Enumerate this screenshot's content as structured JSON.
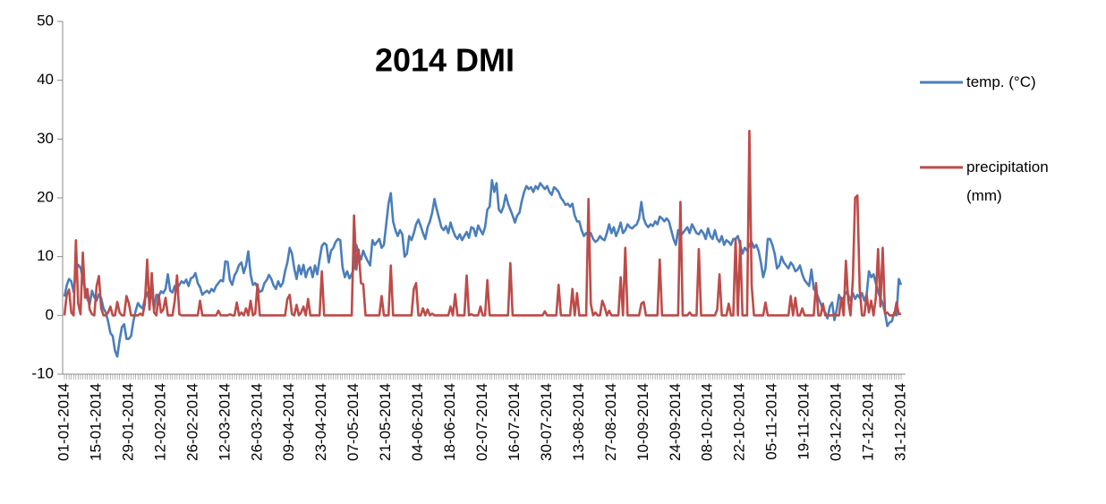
{
  "chart_data": {
    "type": "line",
    "title": "2014 DMI",
    "categories": [
      "01-01-2014",
      null,
      null,
      null,
      null,
      null,
      null,
      null,
      null,
      null,
      null,
      null,
      null,
      null,
      "15-01-2014",
      null,
      null,
      null,
      null,
      null,
      null,
      null,
      null,
      null,
      null,
      null,
      null,
      null,
      "29-01-2014",
      null,
      null,
      null,
      null,
      null,
      null,
      null,
      null,
      null,
      null,
      null,
      null,
      null,
      "12-02-2014",
      null,
      null,
      null,
      null,
      null,
      null,
      null,
      null,
      null,
      null,
      null,
      null,
      null,
      "26-02-2014",
      null,
      null,
      null,
      null,
      null,
      null,
      null,
      null,
      null,
      null,
      null,
      null,
      null,
      "12-03-2014",
      null,
      null,
      null,
      null,
      null,
      null,
      null,
      null,
      null,
      null,
      null,
      null,
      null,
      "26-03-2014",
      null,
      null,
      null,
      null,
      null,
      null,
      null,
      null,
      null,
      null,
      null,
      null,
      null,
      "09-04-2014",
      null,
      null,
      null,
      null,
      null,
      null,
      null,
      null,
      null,
      null,
      null,
      null,
      null,
      "23-04-2014",
      null,
      null,
      null,
      null,
      null,
      null,
      null,
      null,
      null,
      null,
      null,
      null,
      null,
      "07-05-2014",
      null,
      null,
      null,
      null,
      null,
      null,
      null,
      null,
      null,
      null,
      null,
      null,
      null,
      "21-05-2014",
      null,
      null,
      null,
      null,
      null,
      null,
      null,
      null,
      null,
      null,
      null,
      null,
      null,
      "04-06-2014",
      null,
      null,
      null,
      null,
      null,
      null,
      null,
      null,
      null,
      null,
      null,
      null,
      null,
      "18-06-2014",
      null,
      null,
      null,
      null,
      null,
      null,
      null,
      null,
      null,
      null,
      null,
      null,
      null,
      "02-07-2014",
      null,
      null,
      null,
      null,
      null,
      null,
      null,
      null,
      null,
      null,
      null,
      null,
      null,
      "16-07-2014",
      null,
      null,
      null,
      null,
      null,
      null,
      null,
      null,
      null,
      null,
      null,
      null,
      null,
      "30-07-2014",
      null,
      null,
      null,
      null,
      null,
      null,
      null,
      null,
      null,
      null,
      null,
      null,
      null,
      "13-08-2014",
      null,
      null,
      null,
      null,
      null,
      null,
      null,
      null,
      null,
      null,
      null,
      null,
      null,
      "27-08-2014",
      null,
      null,
      null,
      null,
      null,
      null,
      null,
      null,
      null,
      null,
      null,
      null,
      null,
      "10-09-2014",
      null,
      null,
      null,
      null,
      null,
      null,
      null,
      null,
      null,
      null,
      null,
      null,
      null,
      "24-09-2014",
      null,
      null,
      null,
      null,
      null,
      null,
      null,
      null,
      null,
      null,
      null,
      null,
      null,
      "08-10-2014",
      null,
      null,
      null,
      null,
      null,
      null,
      null,
      null,
      null,
      null,
      null,
      null,
      null,
      "22-10-2014",
      null,
      null,
      null,
      null,
      null,
      null,
      null,
      null,
      null,
      null,
      null,
      null,
      null,
      "05-11-2014",
      null,
      null,
      null,
      null,
      null,
      null,
      null,
      null,
      null,
      null,
      null,
      null,
      null,
      "19-11-2014",
      null,
      null,
      null,
      null,
      null,
      null,
      null,
      null,
      null,
      null,
      null,
      null,
      null,
      "03-12-2014",
      null,
      null,
      null,
      null,
      null,
      null,
      null,
      null,
      null,
      null,
      null,
      null,
      null,
      "17-12-2014",
      null,
      null,
      null,
      null,
      null,
      null,
      null,
      null,
      null,
      null,
      null,
      null,
      null,
      "31-12-2014"
    ],
    "series": [
      {
        "name": "temp. (°C)",
        "color": "#4a7ebb",
        "values": [
          3.2,
          5.1,
          6.2,
          5.8,
          4.0,
          7.5,
          8.6,
          8.1,
          6.3,
          4.5,
          2.8,
          1.9,
          4.2,
          3.1,
          2.5,
          3.6,
          2.9,
          1.2,
          0.5,
          -1.0,
          -3.0,
          -3.5,
          -6.0,
          -7.0,
          -4.2,
          -2.0,
          -1.5,
          -4.0,
          -4.0,
          -3.5,
          -1.0,
          0.8,
          2.1,
          1.5,
          1.2,
          2.8,
          3.9,
          2.5,
          3.8,
          1.0,
          3.5,
          3.2,
          4.1,
          3.8,
          4.5,
          7.0,
          4.2,
          3.9,
          5.0,
          4.6,
          5.2,
          5.8,
          5.5,
          6.1,
          5.0,
          6.3,
          6.5,
          7.2,
          5.5,
          4.8,
          3.5,
          3.9,
          4.2,
          3.8,
          4.5,
          4.1,
          5.0,
          5.5,
          6.0,
          5.8,
          9.2,
          9.1,
          6.0,
          5.2,
          6.8,
          7.5,
          8.6,
          9.0,
          7.2,
          8.5,
          10.9,
          7.0,
          5.2,
          5.5,
          4.8,
          4.0,
          4.2,
          5.5,
          6.0,
          6.9,
          6.2,
          5.1,
          4.5,
          5.8,
          4.9,
          5.5,
          7.5,
          9.0,
          11.5,
          10.5,
          8.0,
          6.2,
          8.5,
          7.0,
          8.6,
          6.5,
          7.8,
          8.2,
          6.5,
          8.5,
          7.0,
          9.5,
          11.8,
          12.3,
          12.0,
          9.0,
          11.0,
          11.5,
          12.5,
          13.0,
          12.8,
          8.2,
          6.5,
          7.5,
          6.3,
          7.0,
          8.0,
          12.0,
          10.5,
          9.5,
          11.0,
          10.0,
          9.2,
          8.5,
          12.8,
          12.0,
          12.5,
          13.0,
          11.5,
          12.0,
          15.5,
          19.0,
          20.8,
          16.0,
          14.5,
          13.5,
          14.5,
          13.8,
          10.0,
          10.5,
          13.5,
          12.8,
          14.0,
          15.5,
          16.3,
          15.2,
          14.0,
          13.0,
          15.0,
          16.0,
          17.5,
          19.8,
          18.0,
          16.5,
          15.0,
          14.5,
          15.2,
          14.0,
          15.8,
          14.5,
          13.5,
          13.0,
          13.8,
          12.8,
          13.5,
          14.2,
          13.2,
          15.0,
          14.8,
          13.5,
          15.3,
          14.5,
          13.8,
          15.0,
          18.0,
          18.5,
          23.0,
          21.0,
          22.5,
          18.0,
          17.5,
          18.5,
          20.5,
          19.0,
          18.0,
          17.0,
          15.8,
          17.0,
          17.5,
          19.5,
          21.0,
          22.0,
          21.5,
          21.8,
          21.0,
          22.0,
          21.5,
          22.5,
          22.0,
          21.5,
          22.0,
          21.0,
          20.5,
          21.8,
          21.5,
          21.0,
          20.0,
          19.5,
          18.8,
          19.0,
          18.5,
          19.0,
          17.0,
          16.0,
          16.0,
          14.5,
          13.5,
          14.0,
          13.5,
          14.0,
          13.0,
          12.5,
          12.8,
          13.5,
          13.0,
          12.8,
          14.0,
          15.5,
          14.0,
          15.0,
          13.5,
          14.5,
          15.8,
          14.0,
          14.5,
          15.5,
          15.0,
          14.8,
          15.2,
          15.5,
          16.5,
          19.3,
          16.5,
          15.5,
          15.0,
          15.5,
          15.2,
          16.0,
          15.5,
          16.8,
          16.5,
          16.0,
          16.5,
          16.0,
          14.5,
          13.0,
          12.0,
          14.5,
          13.5,
          14.0,
          14.5,
          15.0,
          14.0,
          15.5,
          14.8,
          14.0,
          13.8,
          14.5,
          14.0,
          13.0,
          14.8,
          13.5,
          13.0,
          14.5,
          13.0,
          12.5,
          13.5,
          12.0,
          12.8,
          12.5,
          12.0,
          13.0,
          13.0,
          13.5,
          12.0,
          10.5,
          11.5,
          11.0,
          12.0,
          12.5,
          11.5,
          12.0,
          11.0,
          9.0,
          6.5,
          8.0,
          13.0,
          13.0,
          12.0,
          10.5,
          8.0,
          8.5,
          10.0,
          9.0,
          8.5,
          8.0,
          9.0,
          8.5,
          7.5,
          7.8,
          8.5,
          7.0,
          6.0,
          5.5,
          5.0,
          7.8,
          4.5,
          4.0,
          3.0,
          2.0,
          1.0,
          0.5,
          -0.5,
          1.5,
          2.2,
          -0.8,
          1.0,
          3.5,
          2.5,
          3.0,
          4.0,
          3.5,
          2.5,
          3.8,
          2.8,
          3.5,
          3.0,
          3.8,
          2.5,
          3.5,
          7.5,
          6.5,
          7.0,
          5.5,
          4.0,
          3.0,
          2.0,
          0.5,
          -1.8,
          -1.2,
          -1.0,
          0.5,
          0.0,
          6.2,
          5.2
        ]
      },
      {
        "name": "precipitation (mm)",
        "color": "#be4b48",
        "values": [
          0,
          3.5,
          4.4,
          0.5,
          0,
          12.8,
          2.0,
          0.2,
          10.7,
          3.0,
          4.5,
          1.0,
          0.2,
          0,
          5.0,
          6.7,
          1.2,
          0,
          0,
          0.5,
          1.5,
          0,
          0,
          2.3,
          0.5,
          0,
          0,
          3.3,
          2.1,
          0,
          0,
          0,
          0,
          0.3,
          0,
          2.0,
          9.5,
          1.0,
          7.2,
          0.5,
          0,
          3.5,
          0.5,
          1.0,
          3.0,
          0,
          0,
          0,
          2.5,
          6.8,
          0.2,
          0,
          0,
          0,
          0,
          0,
          0,
          0,
          0,
          2.5,
          0,
          0,
          0,
          0,
          0,
          0,
          0,
          0.8,
          0,
          0,
          0,
          0,
          0.2,
          0,
          0,
          2.2,
          0,
          0.5,
          0,
          1.2,
          0,
          2.5,
          0,
          0.3,
          5.3,
          0,
          0,
          0,
          0,
          0,
          0,
          0,
          0,
          0,
          0,
          0,
          0,
          2.8,
          3.5,
          0.2,
          0,
          1.8,
          0,
          0.5,
          1.5,
          0,
          2.8,
          0,
          0,
          0,
          0,
          0,
          7.5,
          0,
          0,
          0,
          0,
          0,
          0,
          0,
          0,
          0,
          0,
          0,
          0,
          0,
          17.0,
          7.8,
          11.2,
          5.5,
          5.3,
          0,
          0,
          0,
          0,
          0,
          0,
          0,
          3.3,
          0,
          0,
          0,
          8.5,
          0,
          0,
          0,
          0,
          0,
          0,
          0,
          0,
          0,
          4.5,
          5.5,
          0,
          0,
          1.2,
          0,
          1.0,
          0,
          0.3,
          0,
          0,
          0,
          0,
          0,
          0,
          0,
          1.5,
          0,
          3.6,
          0,
          0,
          0,
          0,
          6.8,
          0,
          0.2,
          0,
          0,
          0,
          1.5,
          0,
          0,
          6.0,
          0,
          0,
          0,
          0,
          0,
          0,
          0,
          0,
          0,
          8.9,
          0,
          0,
          0,
          0,
          0,
          0,
          0,
          0,
          0,
          0,
          0,
          0,
          0,
          0,
          0.7,
          0,
          0,
          0,
          0,
          0,
          5.2,
          0,
          0,
          0,
          0,
          0,
          4.5,
          0,
          3.8,
          0,
          0,
          0,
          0,
          19.8,
          2.0,
          0,
          0.5,
          0,
          0,
          2.5,
          1.5,
          0,
          0.8,
          0,
          0,
          0,
          0,
          6.5,
          0,
          11.5,
          0,
          0,
          0,
          0,
          0,
          0,
          2.0,
          2.3,
          0,
          0,
          0,
          0,
          0,
          0,
          9.5,
          0,
          0,
          0,
          0,
          0,
          0,
          0,
          0,
          19.3,
          0,
          0,
          0,
          0.5,
          0,
          0,
          0,
          11.3,
          0,
          0,
          0,
          0,
          0,
          0,
          0,
          1.0,
          7.0,
          0,
          0,
          0,
          2.0,
          0,
          0,
          13.0,
          0,
          12.7,
          0,
          0,
          0,
          31.4,
          5.0,
          0,
          0,
          0,
          0,
          0,
          2.2,
          0,
          0,
          0,
          0,
          0,
          0,
          0,
          0,
          0,
          0,
          3.3,
          0,
          3.0,
          0,
          0,
          1.2,
          0,
          0,
          0,
          0,
          0,
          5.5,
          0,
          0,
          2.0,
          0,
          0,
          0,
          0,
          0.2,
          0,
          0,
          3.0,
          0,
          9.3,
          2.5,
          0,
          6.0,
          20.0,
          20.4,
          4.5,
          0,
          0,
          3.5,
          0.5,
          2.5,
          0,
          3.0,
          11.3,
          1.5,
          11.5,
          0.3,
          0.5,
          0,
          0,
          0,
          2.2,
          0.2,
          0.3
        ]
      }
    ],
    "ylim": [
      -10,
      50
    ],
    "yticks": [
      -10,
      0,
      10,
      20,
      30,
      40,
      50
    ],
    "grid": false,
    "legend": "right"
  }
}
